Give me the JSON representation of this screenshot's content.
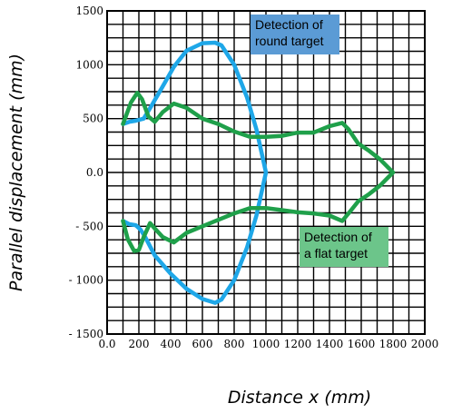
{
  "chart_data": {
    "type": "line",
    "xlabel": "Distance x (mm)",
    "ylabel": "Parallel displacement (mm)",
    "xlim": [
      0,
      2000
    ],
    "ylim": [
      -1500,
      1500
    ],
    "grid": true,
    "x_tick_labels": [
      "0.0",
      "200",
      "400",
      "600",
      "800",
      "1000",
      "1200",
      "1400",
      "1600",
      "1800",
      "2000"
    ],
    "y_tick_labels": [
      "1500",
      "1000",
      "500",
      "0.0",
      "- 500",
      "- 1000",
      "- 1500"
    ],
    "y_tick_values": [
      1500,
      1000,
      500,
      0,
      -500,
      -1000,
      -1500
    ],
    "callouts": [
      {
        "text_lines": [
          "Detection of",
          "round target"
        ],
        "color": "#5b9bd5",
        "series": 0
      },
      {
        "text_lines": [
          "Detection of",
          "a flat target"
        ],
        "color": "#6cc58a",
        "series": 1
      }
    ],
    "series": [
      {
        "color": "#1ea7e8",
        "points": [
          [
            100,
            -450
          ],
          [
            140,
            -480
          ],
          [
            180,
            -490
          ],
          [
            210,
            -530
          ],
          [
            240,
            -600
          ],
          [
            300,
            -770
          ],
          [
            400,
            -940
          ],
          [
            500,
            -1080
          ],
          [
            600,
            -1175
          ],
          [
            680,
            -1210
          ],
          [
            720,
            -1180
          ],
          [
            800,
            -1000
          ],
          [
            880,
            -700
          ],
          [
            940,
            -400
          ],
          [
            1000,
            0
          ],
          [
            940,
            400
          ],
          [
            880,
            700
          ],
          [
            800,
            1000
          ],
          [
            720,
            1180
          ],
          [
            680,
            1205
          ],
          [
            600,
            1200
          ],
          [
            500,
            1130
          ],
          [
            420,
            980
          ],
          [
            350,
            800
          ],
          [
            280,
            620
          ],
          [
            230,
            500
          ],
          [
            180,
            480
          ],
          [
            140,
            470
          ],
          [
            100,
            450
          ]
        ]
      },
      {
        "color": "#1fa04a",
        "points": [
          [
            100,
            450
          ],
          [
            150,
            650
          ],
          [
            190,
            740
          ],
          [
            220,
            680
          ],
          [
            260,
            520
          ],
          [
            300,
            470
          ],
          [
            350,
            560
          ],
          [
            420,
            640
          ],
          [
            500,
            600
          ],
          [
            600,
            500
          ],
          [
            700,
            450
          ],
          [
            800,
            380
          ],
          [
            900,
            330
          ],
          [
            1000,
            330
          ],
          [
            1100,
            340
          ],
          [
            1200,
            370
          ],
          [
            1300,
            370
          ],
          [
            1400,
            430
          ],
          [
            1480,
            460
          ],
          [
            1520,
            400
          ],
          [
            1580,
            270
          ],
          [
            1650,
            200
          ],
          [
            1720,
            120
          ],
          [
            1800,
            0
          ],
          [
            1720,
            -120
          ],
          [
            1650,
            -200
          ],
          [
            1580,
            -270
          ],
          [
            1520,
            -380
          ],
          [
            1480,
            -450
          ],
          [
            1400,
            -400
          ],
          [
            1300,
            -380
          ],
          [
            1200,
            -370
          ],
          [
            1100,
            -350
          ],
          [
            1000,
            -330
          ],
          [
            900,
            -330
          ],
          [
            800,
            -380
          ],
          [
            700,
            -440
          ],
          [
            600,
            -500
          ],
          [
            500,
            -560
          ],
          [
            420,
            -650
          ],
          [
            350,
            -600
          ],
          [
            300,
            -520
          ],
          [
            270,
            -470
          ],
          [
            230,
            -600
          ],
          [
            200,
            -720
          ],
          [
            170,
            -730
          ],
          [
            130,
            -620
          ],
          [
            100,
            -450
          ]
        ]
      }
    ]
  }
}
